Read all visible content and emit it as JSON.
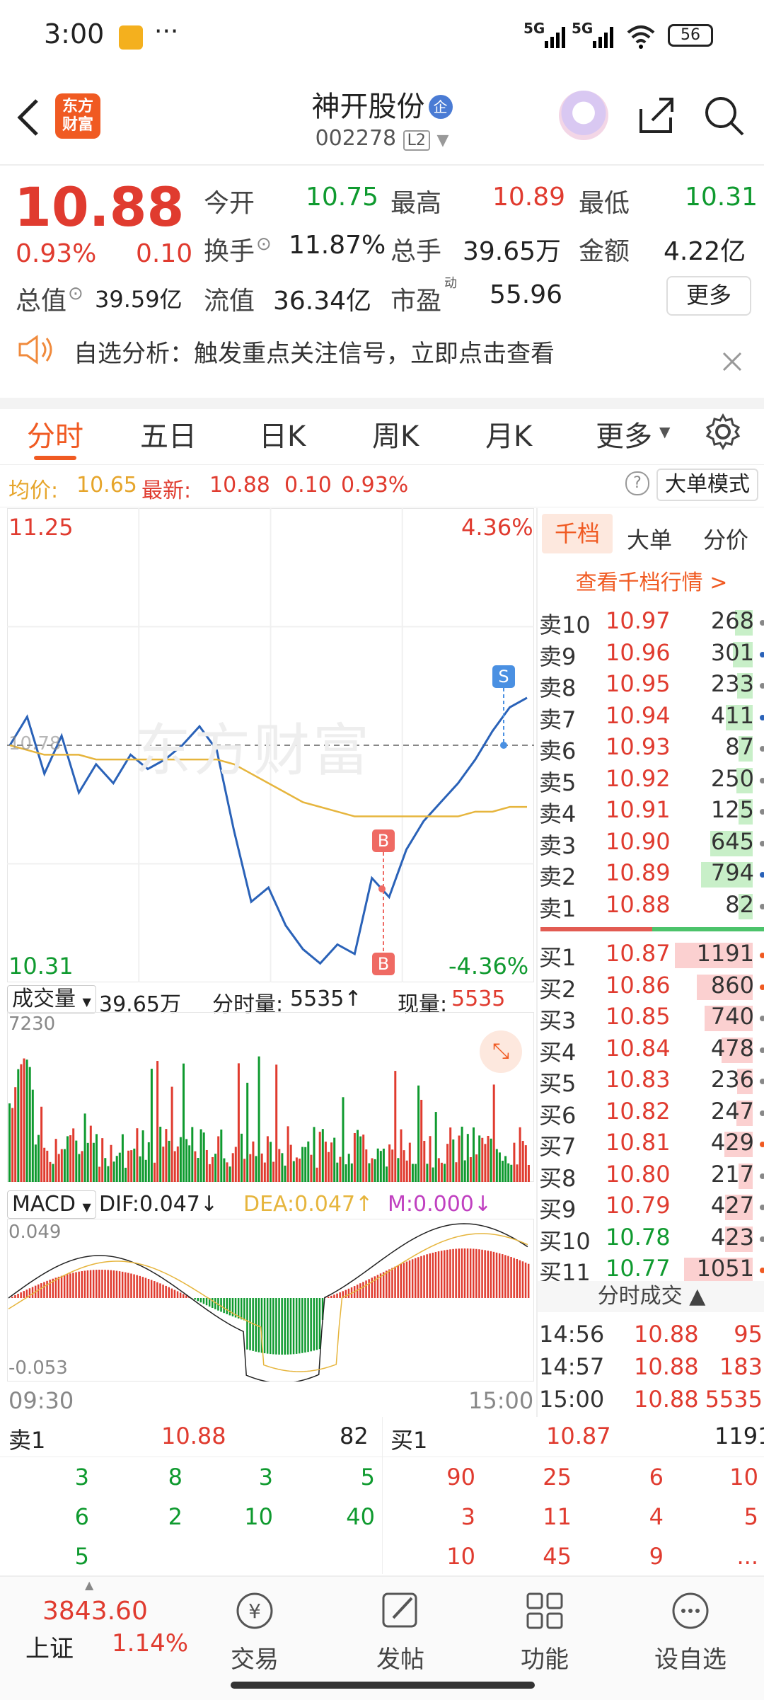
{
  "status_bar": {
    "time": "3:00",
    "network1": "5G",
    "network2": "5G",
    "battery": "56"
  },
  "header": {
    "app_logo": "东方财富",
    "title": "神开股份",
    "badge": "企",
    "code": "002278",
    "level": "L2"
  },
  "quote": {
    "price": "10.88",
    "change_pct": "0.93%",
    "change": "0.10",
    "open_label": "今开",
    "open": "10.75",
    "high_label": "最高",
    "high": "10.89",
    "low_label": "最低",
    "low": "10.31",
    "turnover_label": "换手",
    "turnover": "11.87%",
    "volume_label": "总手",
    "volume": "39.65万",
    "amount_label": "金额",
    "amount": "4.22亿",
    "mcap_label": "总值",
    "mcap": "39.59亿",
    "float_label": "流值",
    "float": "36.34亿",
    "pe_label": "市盈",
    "pe_sup": "动",
    "pe": "55.96",
    "more_button": "更多"
  },
  "notice": {
    "text": "自选分析：触发重点关注信号，立即点击查看"
  },
  "tabs": [
    "分时",
    "五日",
    "日K",
    "周K",
    "月K",
    "更多"
  ],
  "info_line": {
    "avg_label": "均价:",
    "avg": "10.65",
    "last_label": "最新:",
    "last": "10.88",
    "chg": "0.10",
    "pct": "0.93%",
    "mode_button": "大单模式"
  },
  "chart": {
    "y_top": "11.25",
    "y_bottom": "10.31",
    "pct_top": "4.36%",
    "pct_bottom": "-4.36%",
    "ref_label": "10.78",
    "sell_marker": "S",
    "buy_marker_1": "B",
    "buy_marker_2": "B",
    "volume_selector": "成交量",
    "total_volume": "39.65万",
    "tick_volume_label": "分时量:",
    "tick_volume": "5535↑",
    "current_volume_label": "现量:",
    "current_volume": "5535",
    "vol_max": "7230",
    "macd_selector": "MACD",
    "dif": "DIF:0.047↓",
    "dea": "DEA:0.047↑",
    "m": "M:0.000↓",
    "macd_top": "0.049",
    "macd_bottom": "-0.053",
    "time_start": "09:30",
    "time_end": "15:00",
    "watermark": "东方财富",
    "colors": {
      "price_line": "#2a62b8",
      "avg_line": "#e6b53d",
      "up": "#e03b2f",
      "down": "#0f9a2f"
    }
  },
  "chart_data": {
    "type": "line",
    "x_range": [
      "09:30",
      "15:00"
    ],
    "ylim": [
      10.31,
      11.25
    ],
    "reference_price": 10.78,
    "price_series": [
      10.78,
      10.84,
      10.72,
      10.8,
      10.68,
      10.74,
      10.7,
      10.76,
      10.73,
      10.75,
      10.78,
      10.82,
      10.77,
      10.6,
      10.45,
      10.48,
      10.4,
      10.35,
      10.32,
      10.36,
      10.34,
      10.5,
      10.46,
      10.56,
      10.62,
      10.66,
      10.7,
      10.75,
      10.81,
      10.86,
      10.88
    ],
    "avg_series": [
      10.78,
      10.77,
      10.76,
      10.76,
      10.76,
      10.75,
      10.75,
      10.75,
      10.75,
      10.75,
      10.75,
      10.75,
      10.75,
      10.74,
      10.72,
      10.7,
      10.68,
      10.66,
      10.65,
      10.64,
      10.63,
      10.63,
      10.63,
      10.63,
      10.63,
      10.63,
      10.63,
      10.64,
      10.64,
      10.65,
      10.65
    ]
  },
  "order_book": {
    "tabs": [
      "千档",
      "大单",
      "分价"
    ],
    "link": "查看千档行情 >",
    "asks": [
      {
        "label": "卖10",
        "price": "10.97",
        "qty": "268"
      },
      {
        "label": "卖9",
        "price": "10.96",
        "qty": "301"
      },
      {
        "label": "卖8",
        "price": "10.95",
        "qty": "233"
      },
      {
        "label": "卖7",
        "price": "10.94",
        "qty": "411"
      },
      {
        "label": "卖6",
        "price": "10.93",
        "qty": "87"
      },
      {
        "label": "卖5",
        "price": "10.92",
        "qty": "250"
      },
      {
        "label": "卖4",
        "price": "10.91",
        "qty": "125"
      },
      {
        "label": "卖3",
        "price": "10.90",
        "qty": "645"
      },
      {
        "label": "卖2",
        "price": "10.89",
        "qty": "794"
      },
      {
        "label": "卖1",
        "price": "10.88",
        "qty": "82"
      }
    ],
    "bids": [
      {
        "label": "买1",
        "price": "10.87",
        "qty": "1191"
      },
      {
        "label": "买2",
        "price": "10.86",
        "qty": "860"
      },
      {
        "label": "买3",
        "price": "10.85",
        "qty": "740"
      },
      {
        "label": "买4",
        "price": "10.84",
        "qty": "478"
      },
      {
        "label": "买5",
        "price": "10.83",
        "qty": "236"
      },
      {
        "label": "买6",
        "price": "10.82",
        "qty": "247"
      },
      {
        "label": "买7",
        "price": "10.81",
        "qty": "429"
      },
      {
        "label": "买8",
        "price": "10.80",
        "qty": "217"
      },
      {
        "label": "买9",
        "price": "10.79",
        "qty": "427"
      },
      {
        "label": "买10",
        "price": "10.78",
        "qty": "423"
      },
      {
        "label": "买11",
        "price": "10.77",
        "qty": "1051"
      }
    ],
    "trades_title": "分时成交",
    "trades": [
      {
        "time": "14:56",
        "price": "10.88",
        "qty": "95"
      },
      {
        "time": "14:57",
        "price": "10.88",
        "qty": "183"
      },
      {
        "time": "15:00",
        "price": "10.88",
        "qty": "5535"
      }
    ]
  },
  "bottom_panel": {
    "sell_label": "卖1",
    "sell_price": "10.88",
    "sell_qty": "82",
    "buy_label": "买1",
    "buy_price": "10.87",
    "buy_qty": "1191",
    "sell_rows": [
      [
        "3",
        "8",
        "3",
        "5"
      ],
      [
        "6",
        "2",
        "10",
        "40"
      ],
      [
        "5",
        "",
        "",
        ""
      ]
    ],
    "buy_rows": [
      [
        "90",
        "25",
        "6",
        "10"
      ],
      [
        "3",
        "11",
        "4",
        "5"
      ],
      [
        "10",
        "45",
        "9",
        "..."
      ]
    ]
  },
  "bottom_nav": {
    "index_value": "3843.60",
    "index_name": "上证",
    "index_pct": "1.14%",
    "items": [
      "交易",
      "发帖",
      "功能",
      "设自选"
    ]
  }
}
